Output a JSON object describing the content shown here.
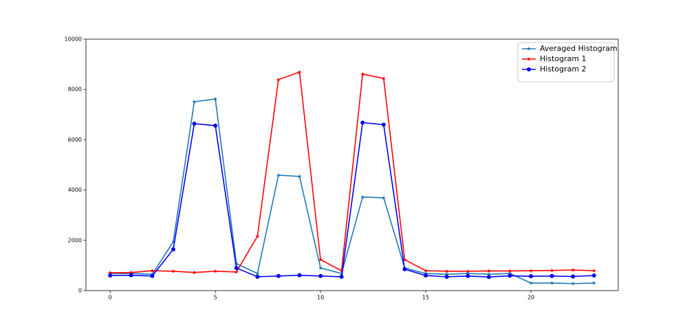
{
  "chart_data": {
    "type": "line",
    "x": [
      0,
      1,
      2,
      3,
      4,
      5,
      6,
      7,
      8,
      9,
      10,
      11,
      12,
      13,
      14,
      15,
      16,
      17,
      18,
      19,
      20,
      21,
      22,
      23
    ],
    "series": [
      {
        "name": "Averaged Histogram",
        "color": "#1f77b4",
        "marker": "star",
        "values": [
          680,
          680,
          650,
          1940,
          7510,
          7620,
          1070,
          680,
          4590,
          4540,
          900,
          680,
          3720,
          3690,
          900,
          680,
          650,
          680,
          650,
          680,
          300,
          300,
          280,
          300
        ]
      },
      {
        "name": "Histogram 1",
        "color": "#ff0000",
        "marker": "star",
        "values": [
          710,
          720,
          790,
          770,
          720,
          770,
          740,
          2160,
          8390,
          8690,
          1230,
          790,
          8610,
          8440,
          1230,
          790,
          770,
          770,
          780,
          780,
          790,
          800,
          820,
          790
        ]
      },
      {
        "name": "Histogram 2",
        "color": "#0000ff",
        "marker": "circle",
        "values": [
          600,
          610,
          580,
          1640,
          6640,
          6560,
          900,
          550,
          580,
          610,
          580,
          550,
          6680,
          6600,
          850,
          600,
          550,
          580,
          540,
          590,
          570,
          580,
          560,
          600
        ]
      }
    ],
    "xlim": [
      -1.15,
      24.15
    ],
    "xticks": [
      0,
      5,
      10,
      15,
      20
    ],
    "ylim": [
      0,
      10000
    ],
    "yticks": [
      0,
      2000,
      4000,
      6000,
      8000,
      10000
    ],
    "legend": "upper right"
  }
}
